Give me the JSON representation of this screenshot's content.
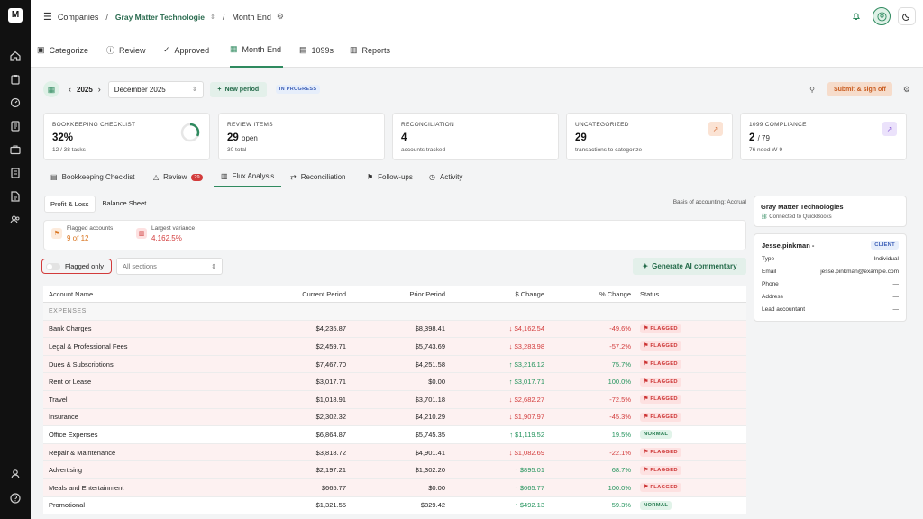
{
  "sidebar": {
    "logo": "M"
  },
  "breadcrumb": {
    "companies": "Companies",
    "company": "Gray Matter Technologie",
    "page": "Month End"
  },
  "tabs": {
    "categorize": "Categorize",
    "review": "Review",
    "approved": "Approved",
    "month_end": "Month End",
    "f1099s": "1099s",
    "reports": "Reports"
  },
  "period": {
    "year": "2025",
    "month": "December 2025",
    "new_period": "New period",
    "status": "IN PROGRESS",
    "submit": "Submit & sign off"
  },
  "cards": {
    "checklist": {
      "label": "Bookkeeping Checklist",
      "value": "32%",
      "sub": "12 / 38 tasks",
      "progress": 0.32
    },
    "review": {
      "label": "Review Items",
      "value": "29",
      "value_suffix": "open",
      "sub": "30 total"
    },
    "reconciliation": {
      "label": "Reconciliation",
      "value": "4",
      "sub": "accounts tracked"
    },
    "uncategorized": {
      "label": "Uncategorized",
      "value": "29",
      "sub": "transactions to categorize"
    },
    "compliance": {
      "label": "1099 Compliance",
      "value": "2",
      "value_suffix": "/ 79",
      "sub": "76 need W-9"
    }
  },
  "subtabs": {
    "checklist": "Bookkeeping Checklist",
    "review": "Review",
    "review_count": "29",
    "flux": "Flux Analysis",
    "reconciliation": "Reconciliation",
    "followups": "Follow-ups",
    "activity": "Activity"
  },
  "flux": {
    "pl": "Profit & Loss",
    "bs": "Balance Sheet",
    "basis": "Basis of accounting: Accrual",
    "flagged_label": "Flagged accounts",
    "flagged_value": "9 of 12",
    "variance_label": "Largest variance",
    "variance_value": "4,162.5%",
    "flagged_only": "Flagged only",
    "all_sections": "All sections",
    "generate": "Generate AI commentary"
  },
  "table": {
    "headers": {
      "account": "Account Name",
      "current": "Current Period",
      "prior": "Prior Period",
      "change": "$ Change",
      "pct": "% Change",
      "status": "Status"
    },
    "section": "EXPENSES",
    "rows": [
      {
        "name": "Bank Charges",
        "current": "$4,235.87",
        "prior": "$8,398.41",
        "change": "↓ $4,162.54",
        "pct": "-49.6%",
        "status": "FLAGGED"
      },
      {
        "name": "Legal & Professional Fees",
        "current": "$2,459.71",
        "prior": "$5,743.69",
        "change": "↓ $3,283.98",
        "pct": "-57.2%",
        "status": "FLAGGED"
      },
      {
        "name": "Dues & Subscriptions",
        "current": "$7,467.70",
        "prior": "$4,251.58",
        "change": "↑ $3,216.12",
        "pct": "75.7%",
        "status": "FLAGGED"
      },
      {
        "name": "Rent or Lease",
        "current": "$3,017.71",
        "prior": "$0.00",
        "change": "↑ $3,017.71",
        "pct": "100.0%",
        "status": "FLAGGED"
      },
      {
        "name": "Travel",
        "current": "$1,018.91",
        "prior": "$3,701.18",
        "change": "↓ $2,682.27",
        "pct": "-72.5%",
        "status": "FLAGGED"
      },
      {
        "name": "Insurance",
        "current": "$2,302.32",
        "prior": "$4,210.29",
        "change": "↓ $1,907.97",
        "pct": "-45.3%",
        "status": "FLAGGED"
      },
      {
        "name": "Office Expenses",
        "current": "$6,864.87",
        "prior": "$5,745.35",
        "change": "↑ $1,119.52",
        "pct": "19.5%",
        "status": "NORMAL"
      },
      {
        "name": "Repair & Maintenance",
        "current": "$3,818.72",
        "prior": "$4,901.41",
        "change": "↓ $1,082.69",
        "pct": "-22.1%",
        "status": "FLAGGED"
      },
      {
        "name": "Advertising",
        "current": "$2,197.21",
        "prior": "$1,302.20",
        "change": "↑ $895.01",
        "pct": "68.7%",
        "status": "FLAGGED"
      },
      {
        "name": "Meals and Entertainment",
        "current": "$665.77",
        "prior": "$0.00",
        "change": "↑ $665.77",
        "pct": "100.0%",
        "status": "FLAGGED"
      },
      {
        "name": "Promotional",
        "current": "$1,321.55",
        "prior": "$829.42",
        "change": "↑ $492.13",
        "pct": "59.3%",
        "status": "NORMAL"
      }
    ]
  },
  "company_panel": {
    "name": "Gray Matter Technologies",
    "connected": "Connected to QuickBooks"
  },
  "client": {
    "name": "Jesse.pinkman -",
    "badge": "CLIENT",
    "type_label": "Type",
    "type": "Individual",
    "email_label": "Email",
    "email": "jesse.pinkman@example.com",
    "phone_label": "Phone",
    "phone": "—",
    "address_label": "Address",
    "address": "—",
    "lead_label": "Lead accountant",
    "lead": "—"
  },
  "colors": {
    "accent": "#2f8a5f",
    "flag": "#d23b3b",
    "sidebar": "#111111"
  }
}
